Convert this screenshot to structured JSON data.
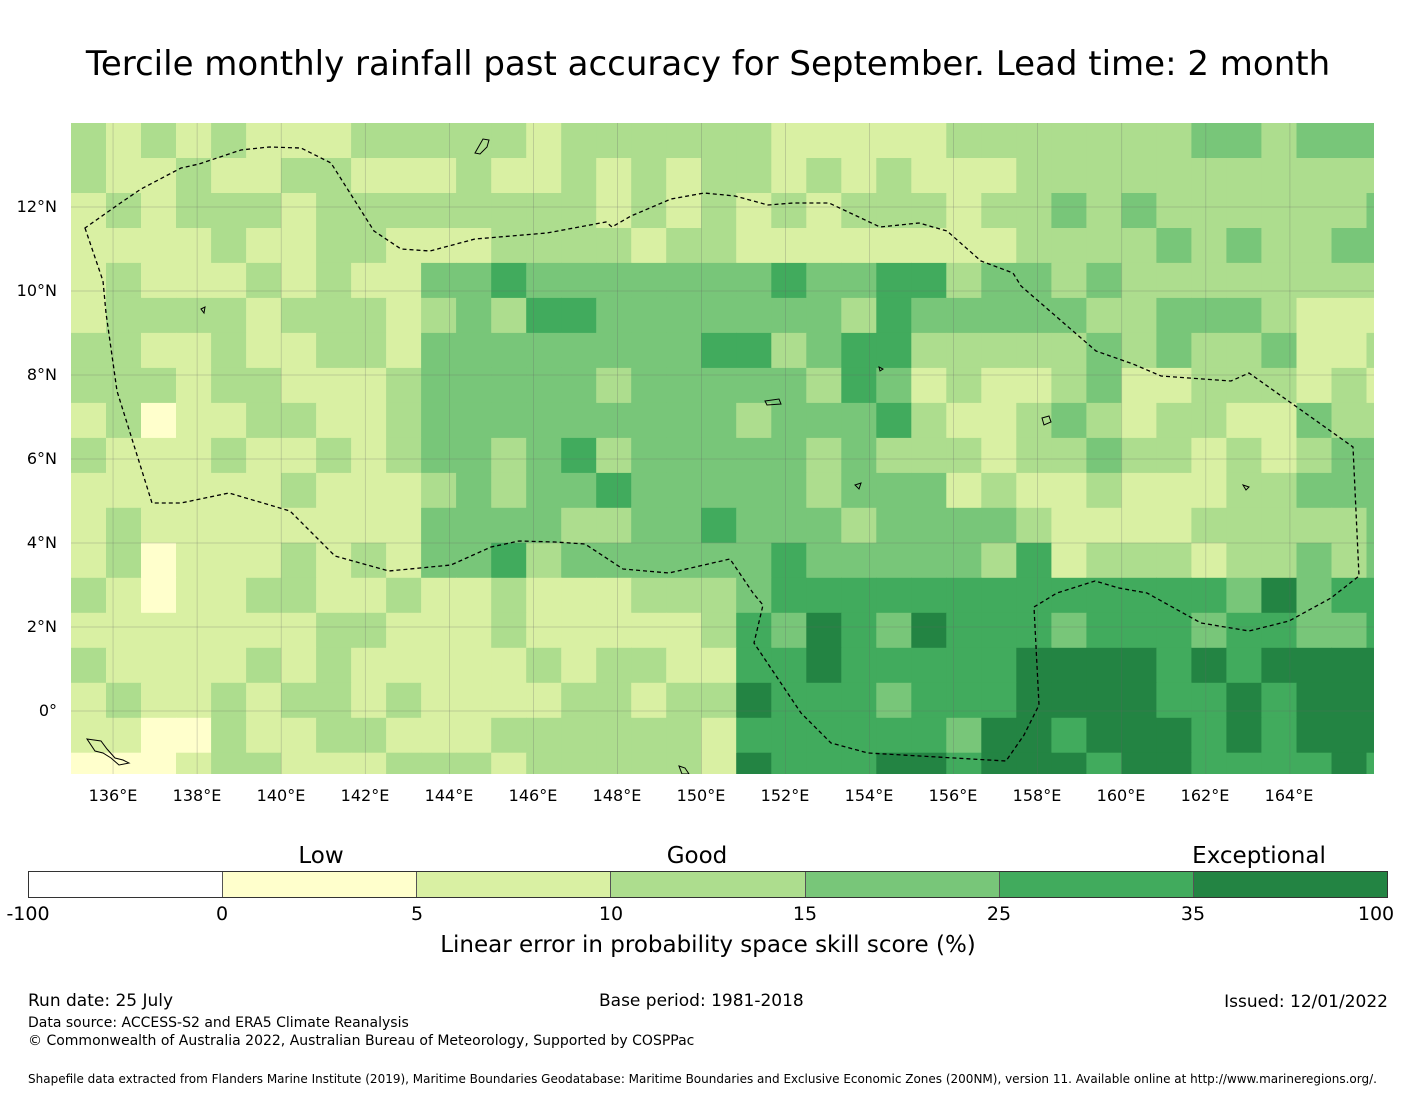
{
  "title": "Tercile monthly rainfall past accuracy for September. Lead time: 2 month",
  "map": {
    "lat_labels": [
      "12°N",
      "10°N",
      "8°N",
      "6°N",
      "4°N",
      "2°N",
      "0°"
    ],
    "lon_labels": [
      "136°E",
      "138°E",
      "140°E",
      "142°E",
      "144°E",
      "146°E",
      "148°E",
      "150°E",
      "152°E",
      "154°E",
      "156°E",
      "158°E",
      "160°E",
      "162°E",
      "164°E"
    ],
    "lon_range": [
      135,
      166
    ],
    "lat_range": [
      -1.5,
      14
    ],
    "grid_lines": true
  },
  "legend": {
    "categories": [
      {
        "label": "Low"
      },
      {
        "label": "Good"
      },
      {
        "label": "Exceptional"
      }
    ],
    "ticks": [
      "-100",
      "0",
      "5",
      "10",
      "15",
      "25",
      "35",
      "100"
    ],
    "colors": [
      "#ffffff",
      "#ffffcc",
      "#d9f0a3",
      "#addd8e",
      "#78c679",
      "#41ab5d",
      "#238443"
    ],
    "title": "Linear error in probability space skill score (%)"
  },
  "footer": {
    "run_date": "Run date: 25 July",
    "base_period": "Base period: 1981-2018",
    "issued": "Issued: 12/01/2022",
    "data_source": "Data source: ACCESS-S2 and ERA5 Climate Reanalysis",
    "copyright": "© Commonwealth of Australia 2022, Australian Bureau of Meteorology, Supported by COSPPac",
    "shapefile": "Shapefile data extracted from Flanders Marine Institute (2019), Maritime Boundaries Geodatabase: Maritime Boundaries and Exclusive Economic Zones (200NM), version 11. Available online at http://www.marineregions.org/."
  }
}
